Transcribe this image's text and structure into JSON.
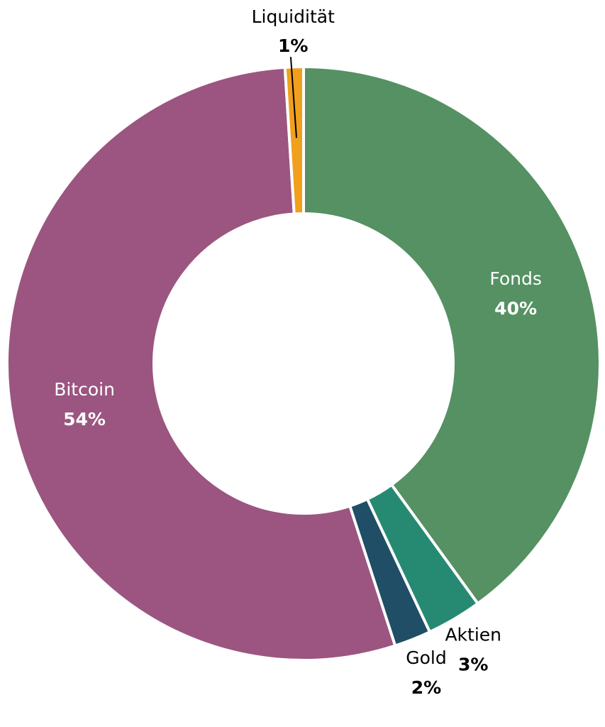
{
  "chart_data": {
    "type": "donut",
    "categories": [
      "Fonds",
      "Aktien",
      "Gold",
      "Bitcoin",
      "Liquidität"
    ],
    "values": [
      40,
      3,
      2,
      54,
      1
    ],
    "value_labels": [
      "40%",
      "3%",
      "2%",
      "54%",
      "1%"
    ],
    "colors": [
      "#559162",
      "#268a72",
      "#1f4e66",
      "#9b5580",
      "#f0a01c"
    ]
  }
}
